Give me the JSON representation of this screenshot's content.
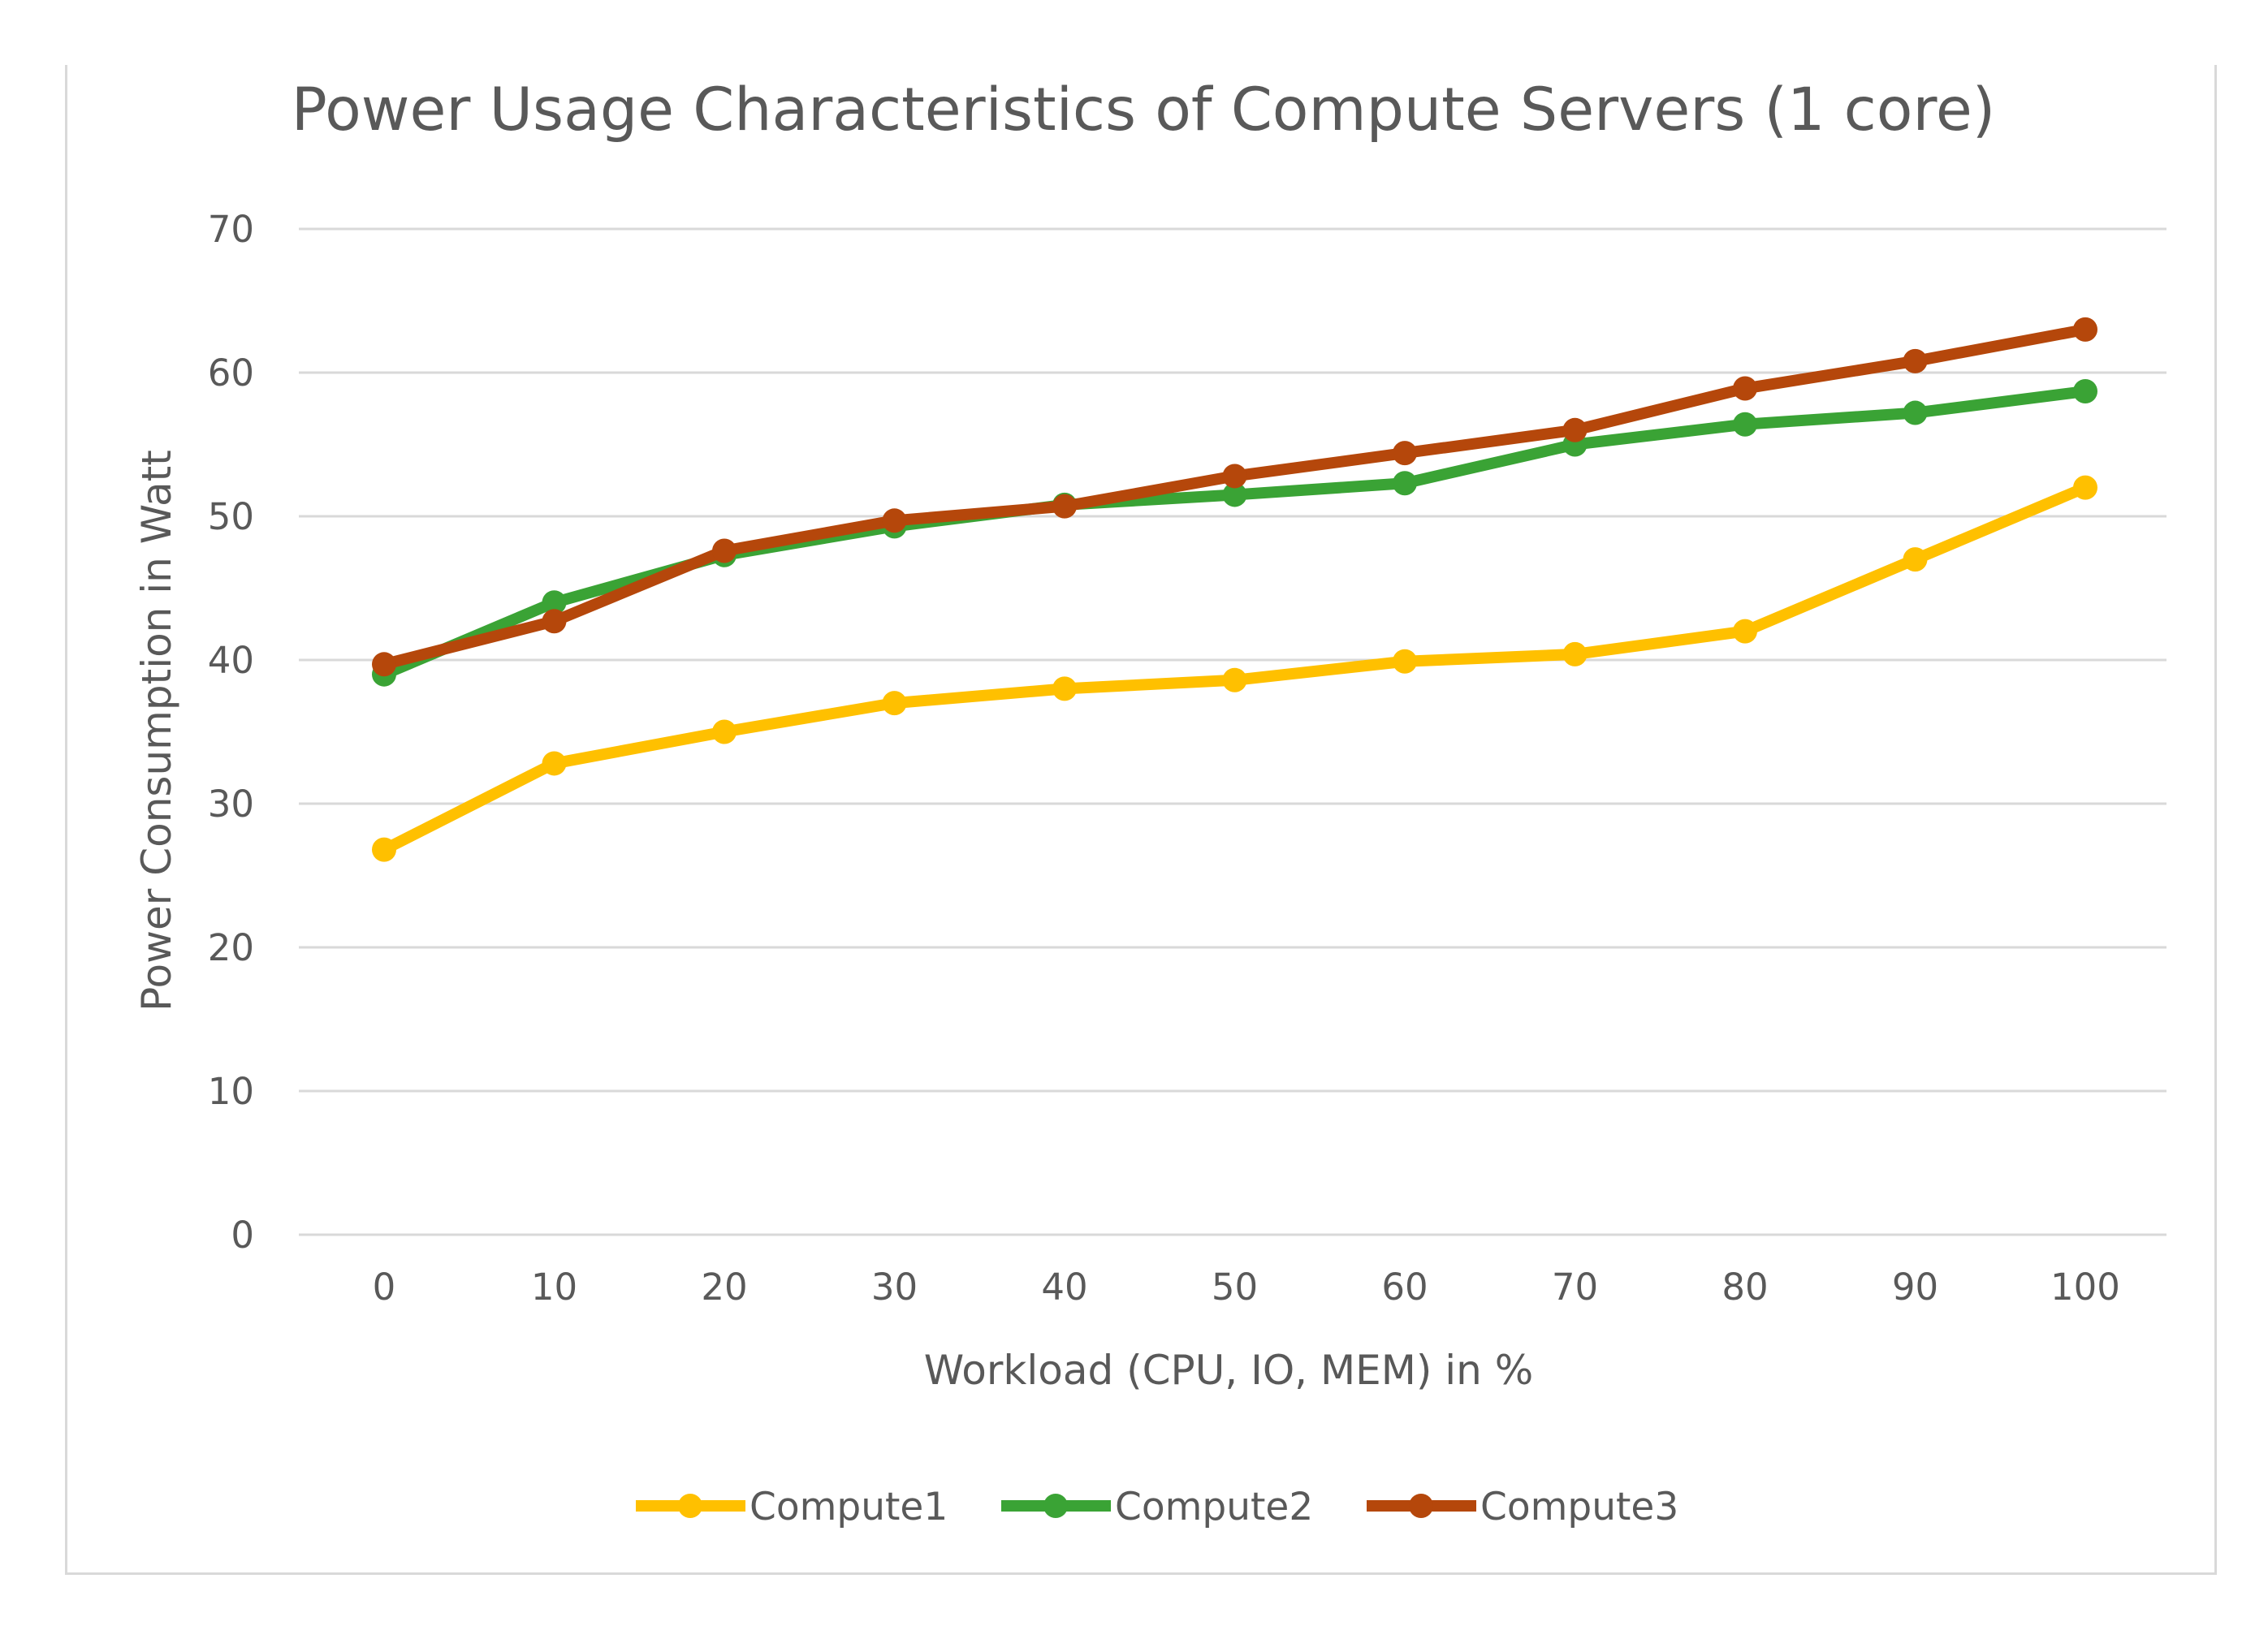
{
  "chart_data": {
    "type": "line",
    "title": "Power Usage Characteristics of Compute Servers (1 core)",
    "xlabel": "Workload (CPU, IO, MEM) in %",
    "ylabel": "Power Consumption in Watt",
    "x": [
      0,
      10,
      20,
      30,
      40,
      50,
      60,
      70,
      80,
      90,
      100
    ],
    "x_tick_labels": [
      "0",
      "10",
      "20",
      "30",
      "40",
      "50",
      "60",
      "70",
      "80",
      "90",
      "100"
    ],
    "ylim": [
      0,
      70
    ],
    "y_ticks": [
      0,
      10,
      20,
      30,
      40,
      50,
      60,
      70
    ],
    "y_tick_labels": [
      "0",
      "10",
      "20",
      "30",
      "40",
      "50",
      "60",
      "70"
    ],
    "grid": true,
    "legend_position": "bottom",
    "series": [
      {
        "name": "Compute1",
        "color": "#ffc000",
        "values": [
          26.8,
          32.8,
          35.0,
          37.0,
          38.0,
          38.6,
          39.9,
          40.4,
          42.0,
          47.0,
          52.0
        ]
      },
      {
        "name": "Compute2",
        "color": "#3aa335",
        "values": [
          39.0,
          44.0,
          47.3,
          49.3,
          50.8,
          51.5,
          52.3,
          55.0,
          56.4,
          57.2,
          58.7
        ]
      },
      {
        "name": "Compute3",
        "color": "#b5470b",
        "values": [
          39.7,
          42.7,
          47.6,
          49.7,
          50.7,
          52.8,
          54.4,
          56.0,
          58.9,
          60.8,
          63.0
        ]
      }
    ]
  }
}
